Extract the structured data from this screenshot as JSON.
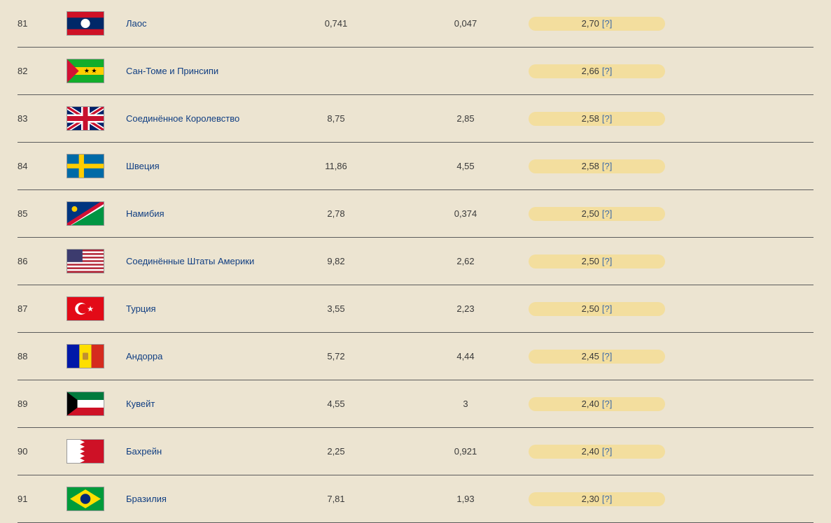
{
  "colors": {
    "page_bg": "#ece4d1",
    "row_border": "#5b5b5b",
    "link": "#103e82",
    "pill_bg": "#f3de9e",
    "pill_q": "#3d6aa8"
  },
  "rows": [
    {
      "rank": "81",
      "flag_id": "laos",
      "country": "Лаос",
      "v1": "0,741",
      "v2": "0,047",
      "pill_value": "2,70",
      "pill_q": "[?]"
    },
    {
      "rank": "82",
      "flag_id": "sao-tome",
      "country": "Сан-Томе и Принсипи",
      "v1": "",
      "v2": "",
      "pill_value": "2,66",
      "pill_q": "[?]"
    },
    {
      "rank": "83",
      "flag_id": "uk",
      "country": "Соединённое Королевство",
      "v1": "8,75",
      "v2": "2,85",
      "pill_value": "2,58",
      "pill_q": "[?]"
    },
    {
      "rank": "84",
      "flag_id": "sweden",
      "country": "Швеция",
      "v1": "11,86",
      "v2": "4,55",
      "pill_value": "2,58",
      "pill_q": "[?]"
    },
    {
      "rank": "85",
      "flag_id": "namibia",
      "country": "Намибия",
      "v1": "2,78",
      "v2": "0,374",
      "pill_value": "2,50",
      "pill_q": "[?]"
    },
    {
      "rank": "86",
      "flag_id": "usa",
      "country": "Соединённые Штаты Америки",
      "v1": "9,82",
      "v2": "2,62",
      "pill_value": "2,50",
      "pill_q": "[?]"
    },
    {
      "rank": "87",
      "flag_id": "turkey",
      "country": "Турция",
      "v1": "3,55",
      "v2": "2,23",
      "pill_value": "2,50",
      "pill_q": "[?]"
    },
    {
      "rank": "88",
      "flag_id": "andorra",
      "country": "Андорра",
      "v1": "5,72",
      "v2": "4,44",
      "pill_value": "2,45",
      "pill_q": "[?]"
    },
    {
      "rank": "89",
      "flag_id": "kuwait",
      "country": "Кувейт",
      "v1": "4,55",
      "v2": "3",
      "pill_value": "2,40",
      "pill_q": "[?]"
    },
    {
      "rank": "90",
      "flag_id": "bahrain",
      "country": "Бахрейн",
      "v1": "2,25",
      "v2": "0,921",
      "pill_value": "2,40",
      "pill_q": "[?]"
    },
    {
      "rank": "91",
      "flag_id": "brazil",
      "country": "Бразилия",
      "v1": "7,81",
      "v2": "1,93",
      "pill_value": "2,30",
      "pill_q": "[?]"
    }
  ]
}
